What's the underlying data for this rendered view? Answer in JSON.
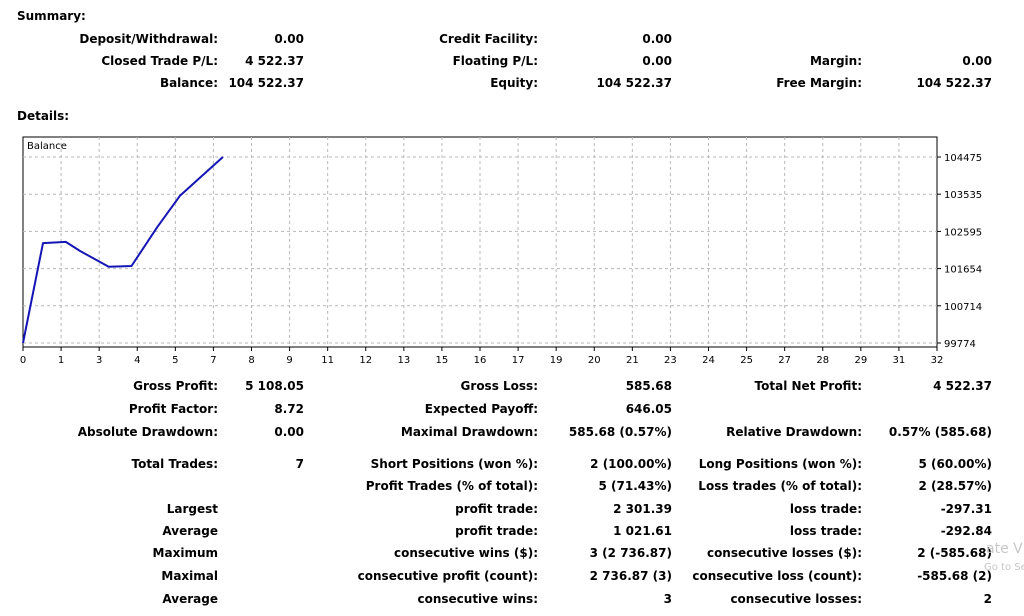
{
  "summary": {
    "title": "Summary:",
    "deposit_label": "Deposit/Withdrawal:",
    "deposit_value": "0.00",
    "credit_label": "Credit Facility:",
    "credit_value": "0.00",
    "closed_pl_label": "Closed Trade P/L:",
    "closed_pl_value": "4 522.37",
    "floating_pl_label": "Floating P/L:",
    "floating_pl_value": "0.00",
    "margin_label": "Margin:",
    "margin_value": "0.00",
    "balance_label": "Balance:",
    "balance_value": "104 522.37",
    "equity_label": "Equity:",
    "equity_value": "104 522.37",
    "free_margin_label": "Free Margin:",
    "free_margin_value": "104 522.37"
  },
  "details": {
    "title": "Details:"
  },
  "chart_data": {
    "type": "line",
    "title": "Balance",
    "xlabel": "",
    "ylabel": "",
    "x_ticks": [
      "0",
      "1",
      "3",
      "4",
      "5",
      "7",
      "8",
      "9",
      "11",
      "12",
      "13",
      "15",
      "16",
      "17",
      "19",
      "20",
      "21",
      "23",
      "24",
      "25",
      "27",
      "28",
      "29",
      "31",
      "32"
    ],
    "y_ticks": [
      "104475",
      "103535",
      "102595",
      "101654",
      "100714",
      "99774"
    ],
    "xlim": [
      0,
      32
    ],
    "ylim": [
      99774,
      104475
    ],
    "grid": true,
    "series": [
      {
        "color": "#1515b5",
        "x": [
          0,
          0.7,
          1.5,
          2.0,
          3.0,
          3.8,
          4.7,
          5.5,
          7.0
        ],
        "y": [
          99774,
          102300,
          102330,
          102100,
          101700,
          101720,
          102700,
          103500,
          104475
        ]
      }
    ]
  },
  "stats": {
    "gross_profit_label": "Gross Profit:",
    "gross_profit_value": "5 108.05",
    "gross_loss_label": "Gross Loss:",
    "gross_loss_value": "585.68",
    "total_net_profit_label": "Total Net Profit:",
    "total_net_profit_value": "4 522.37",
    "profit_factor_label": "Profit Factor:",
    "profit_factor_value": "8.72",
    "expected_payoff_label": "Expected Payoff:",
    "expected_payoff_value": "646.05",
    "abs_drawdown_label": "Absolute Drawdown:",
    "abs_drawdown_value": "0.00",
    "max_drawdown_label": "Maximal Drawdown:",
    "max_drawdown_value": "585.68 (0.57%)",
    "rel_drawdown_label": "Relative Drawdown:",
    "rel_drawdown_value": "0.57% (585.68)",
    "total_trades_label": "Total Trades:",
    "total_trades_value": "7",
    "short_pos_label": "Short Positions (won %):",
    "short_pos_value": "2 (100.00%)",
    "long_pos_label": "Long Positions (won %):",
    "long_pos_value": "5 (60.00%)",
    "profit_trades_label": "Profit Trades (% of total):",
    "profit_trades_value": "5 (71.43%)",
    "loss_trades_label": "Loss trades (% of total):",
    "loss_trades_value": "2 (28.57%)",
    "largest_label": "Largest",
    "largest_profit_label": "profit trade:",
    "largest_profit_value": "2 301.39",
    "largest_loss_label": "loss trade:",
    "largest_loss_value": "-297.31",
    "average_label": "Average",
    "average_profit_label": "profit trade:",
    "average_profit_value": "1 021.61",
    "average_loss_label": "loss trade:",
    "average_loss_value": "-292.84",
    "maximum_label": "Maximum",
    "max_cons_wins_label": "consecutive wins ($):",
    "max_cons_wins_value": "3 (2 736.87)",
    "max_cons_losses_label": "consecutive losses ($):",
    "max_cons_losses_value": "2 (-585.68)",
    "maximal_label": "Maximal",
    "maximal_profit_label": "consecutive profit (count):",
    "maximal_profit_value": "2 736.87 (3)",
    "maximal_loss_label": "consecutive loss (count):",
    "maximal_loss_value": "-585.68 (2)",
    "average2_label": "Average",
    "avg_cons_wins_label": "consecutive wins:",
    "avg_cons_wins_value": "3",
    "avg_cons_losses_label": "consecutive losses:",
    "avg_cons_losses_value": "2"
  },
  "watermark": {
    "line1": "ate V",
    "line2": "Go to Setting"
  }
}
